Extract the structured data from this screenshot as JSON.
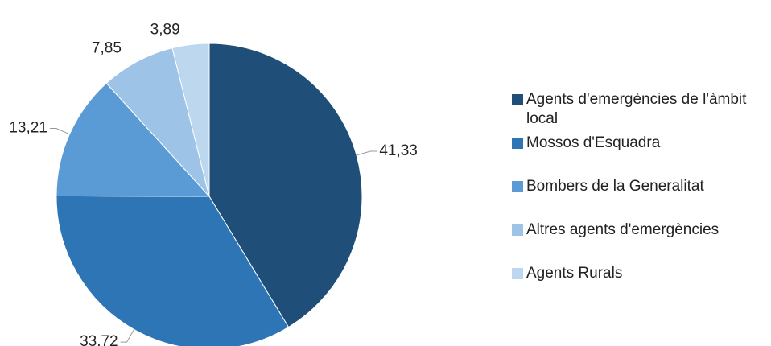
{
  "chart_data": {
    "type": "pie",
    "categories": [
      "Agents d'emergències de l'àmbit local",
      "Mossos d'Esquadra",
      "Bombers de la Generalitat",
      "Altres agents d'emergències",
      "Agents Rurals"
    ],
    "values": [
      41.33,
      33.72,
      13.21,
      7.85,
      3.89
    ],
    "value_labels": [
      "41,33",
      "33,72",
      "13,21",
      "7,85",
      "3,89"
    ],
    "colors": [
      "#1f4e79",
      "#2e75b6",
      "#5b9bd5",
      "#9dc3e6",
      "#bdd7ee"
    ],
    "legend": "right"
  }
}
